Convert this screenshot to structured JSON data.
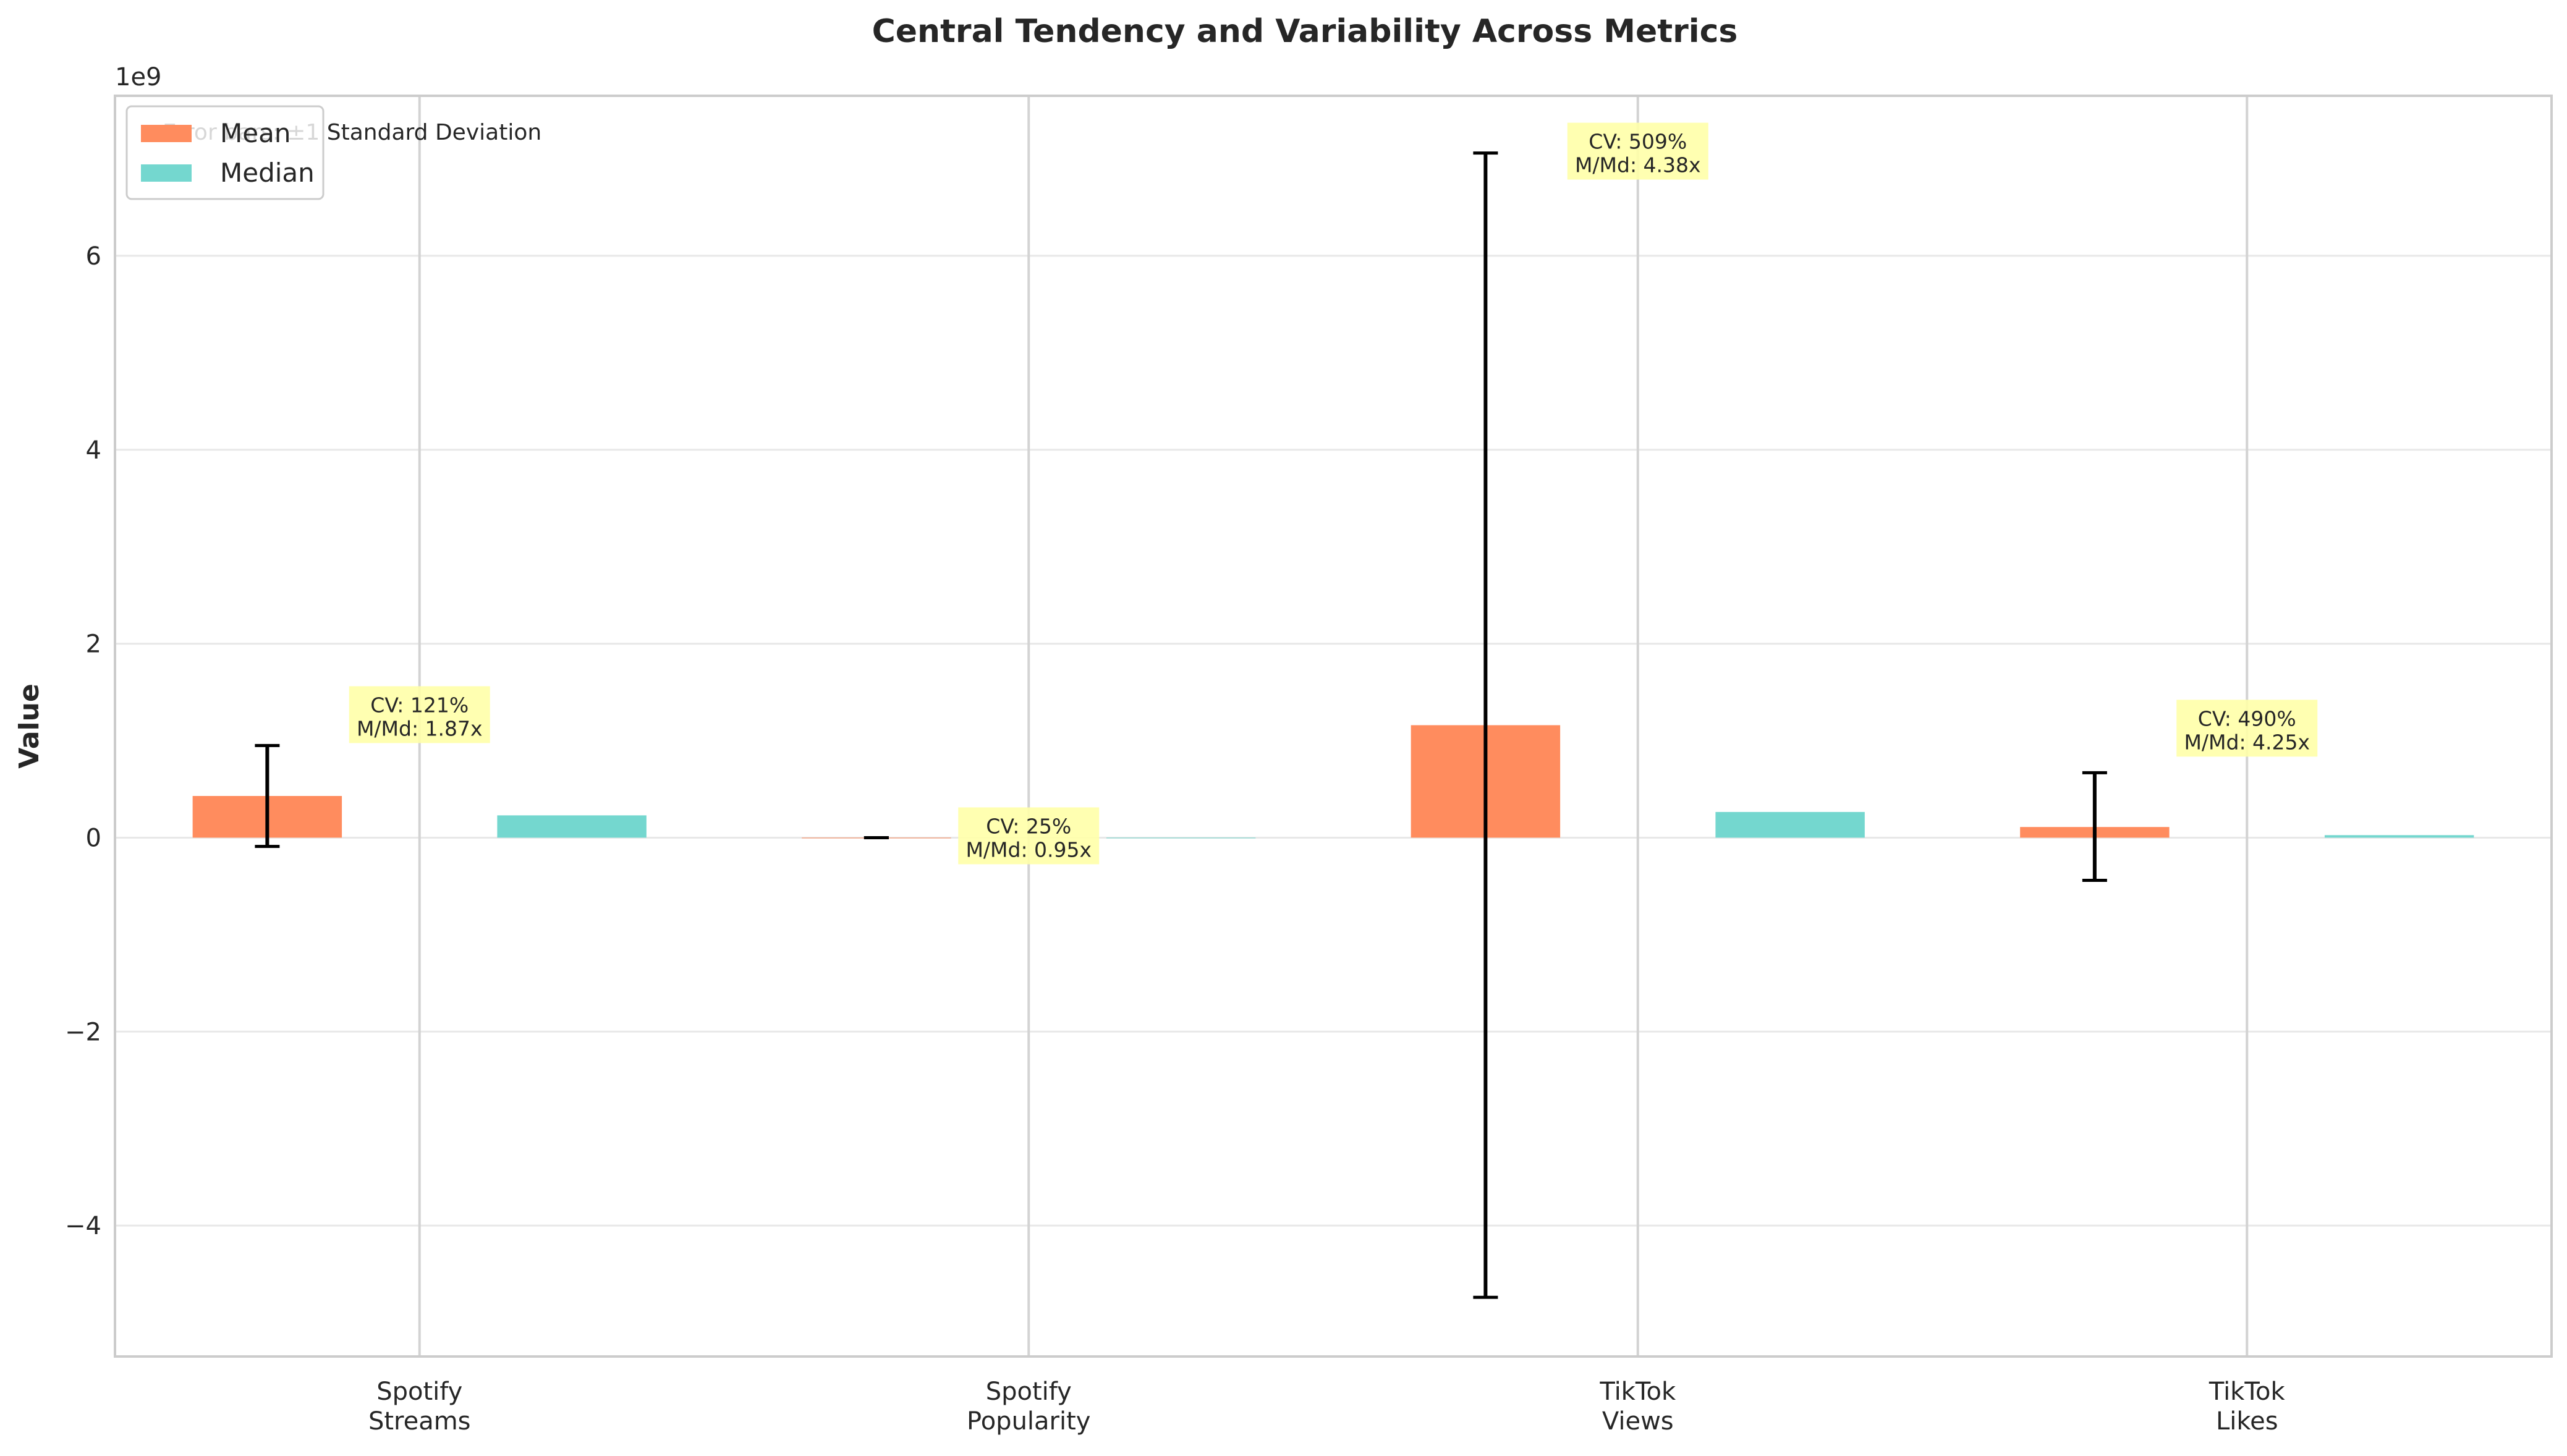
{
  "chart_data": {
    "type": "bar",
    "title": "Central Tendency and Variability Across Metrics",
    "xlabel": "",
    "ylabel": "Value",
    "y_scale_label": "1e9",
    "ylim": [
      -5.35,
      7.65
    ],
    "yticks": [
      {
        "value": -4,
        "label": "−4"
      },
      {
        "value": -2,
        "label": "−2"
      },
      {
        "value": 0,
        "label": "0"
      },
      {
        "value": 2,
        "label": "2"
      },
      {
        "value": 4,
        "label": "4"
      },
      {
        "value": 6,
        "label": "6"
      }
    ],
    "categories": [
      {
        "line1": "Spotify",
        "line2": "Streams"
      },
      {
        "line1": "Spotify",
        "line2": "Popularity"
      },
      {
        "line1": "TikTok",
        "line2": "Views"
      },
      {
        "line1": "TikTok",
        "line2": "Likes"
      }
    ],
    "series": [
      {
        "name": "Mean",
        "color": "#ff8c5e",
        "values": [
          0.43,
          0.0,
          1.16,
          0.11
        ]
      },
      {
        "name": "Median",
        "color": "#74d7cf",
        "values": [
          0.23,
          0.0,
          0.265,
          0.026
        ]
      }
    ],
    "error_bars": [
      {
        "low": -0.09,
        "high": 0.95
      },
      {
        "low": 0.0,
        "high": 0.0
      },
      {
        "low": -4.74,
        "high": 7.06
      },
      {
        "low": -0.44,
        "high": 0.67
      }
    ],
    "annotations": [
      {
        "line1": "CV: 121%",
        "line2": "M/Md: 1.87x"
      },
      {
        "line1": "CV: 25%",
        "line2": "M/Md: 0.95x"
      },
      {
        "line1": "CV: 509%",
        "line2": "M/Md: 4.38x"
      },
      {
        "line1": "CV: 490%",
        "line2": "M/Md: 4.25x"
      }
    ],
    "legend": {
      "placement": "top-left",
      "items": [
        {
          "label": "Mean",
          "color": "#ff8c5e"
        },
        {
          "label": "Median",
          "color": "#74d7cf"
        }
      ]
    },
    "note": "Error bars: ±1 Standard Deviation",
    "grid": true
  }
}
